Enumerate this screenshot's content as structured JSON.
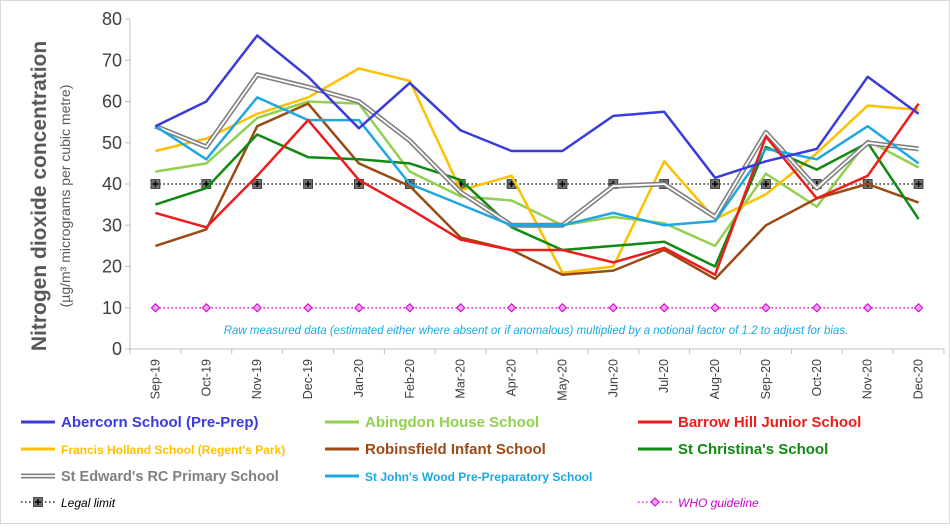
{
  "chart_data": {
    "type": "line",
    "title": "",
    "ylabel": "Nitrogen dioxide concentration",
    "ylabel_sub": "(µg/m³ micrograms per cubic metre)",
    "xlabel": "",
    "ylim": [
      0,
      80
    ],
    "yticks": [
      "0",
      "10",
      "20",
      "30",
      "40",
      "50",
      "60",
      "70",
      "80"
    ],
    "grid": false,
    "legend_position": "bottom",
    "annotation": "Raw measured data (estimated either where absent or if anomalous) multiplied by a notional factor of 1.2 to adjust for bias.",
    "categories": [
      "Sep-19",
      "Oct-19",
      "Nov-19",
      "Dec-19",
      "Jan-20",
      "Feb-20",
      "Mar-20",
      "Apr-20",
      "May-20",
      "Jun-20",
      "Jul-20",
      "Aug-20",
      "Sep-20",
      "Oct-20",
      "Nov-20",
      "Dec-20"
    ],
    "series": [
      {
        "name": "Abercorn School (Pre-Prep)",
        "color": "#3b3bdc",
        "style": "solid",
        "values": [
          54,
          60,
          76,
          66,
          53.5,
          64.5,
          53,
          48,
          48,
          56.5,
          57.5,
          41.5,
          45.5,
          48.5,
          66,
          57
        ]
      },
      {
        "name": "Abingdon House School",
        "color": "#92d050",
        "style": "solid",
        "values": [
          43,
          45,
          56,
          60,
          59.5,
          43,
          37,
          36,
          30,
          32,
          30.5,
          25,
          42.5,
          34.5,
          50.5,
          44
        ]
      },
      {
        "name": "Barrow Hill Junior School",
        "color": "#ee1c1c",
        "style": "solid",
        "values": [
          33,
          29.5,
          42,
          55.5,
          41,
          34,
          26.5,
          24,
          24,
          21,
          24.5,
          18,
          51.5,
          36.5,
          42,
          59.5
        ]
      },
      {
        "name": "Francis Holland School (Regent's Park)",
        "color": "#ffc000",
        "style": "solid",
        "values": [
          48,
          51,
          57,
          61,
          68,
          65,
          38.5,
          42,
          18.5,
          20,
          45.5,
          31.5,
          37.5,
          47.5,
          59,
          58
        ]
      },
      {
        "name": "Robinsfield Infant School",
        "color": "#9c4a14",
        "style": "solid",
        "values": [
          25,
          29,
          54,
          59.5,
          45,
          39.5,
          27,
          24,
          18,
          19,
          24,
          17,
          30,
          36.5,
          40,
          35.5
        ]
      },
      {
        "name": "St Christina's School",
        "color": "#118a11",
        "style": "solid",
        "values": [
          35,
          39,
          52,
          46.5,
          46,
          45,
          41,
          29.5,
          24,
          25,
          26,
          20,
          49,
          43.5,
          50,
          31.5
        ]
      },
      {
        "name": "St Edward's RC Primary School",
        "color": "#808080",
        "style": "double",
        "values": [
          54,
          49,
          66.5,
          63.5,
          60,
          50.5,
          38,
          30,
          30,
          39.5,
          40,
          32,
          52.5,
          39,
          50,
          48.5
        ]
      },
      {
        "name": "St John's Wood Pre-Preparatory School",
        "color": "#1ea7e1",
        "style": "solid",
        "values": [
          54,
          46,
          61,
          55.5,
          55.5,
          40,
          35,
          30,
          30,
          33,
          30,
          31,
          48.5,
          46,
          54,
          45
        ]
      },
      {
        "name": "Legal limit",
        "color": "#000000",
        "style": "dotted-marker",
        "marker": "square-plus",
        "values": [
          40,
          40,
          40,
          40,
          40,
          40,
          40,
          40,
          40,
          40,
          40,
          40,
          40,
          40,
          40,
          40
        ]
      },
      {
        "name": "WHO guideline",
        "color": "#cc00cc",
        "style": "dotted-marker",
        "marker": "diamond",
        "values": [
          10,
          10,
          10,
          10,
          10,
          10,
          10,
          10,
          10,
          10,
          10,
          10,
          10,
          10,
          10,
          10
        ]
      }
    ],
    "legend": [
      {
        "label": "Abercorn School (Pre-Prep)",
        "color": "#3b3bdc",
        "series": 0
      },
      {
        "label": "Abingdon House School",
        "color": "#92d050",
        "series": 1
      },
      {
        "label": "Barrow Hill Junior School",
        "color": "#ee1c1c",
        "series": 2
      },
      {
        "label": "Francis Holland School (Regent's Park)",
        "color": "#ffc000",
        "series": 3
      },
      {
        "label": "Robinsfield Infant School",
        "color": "#9c4a14",
        "series": 4
      },
      {
        "label": "St Christina's School",
        "color": "#118a11",
        "series": 5
      },
      {
        "label": "St Edward's RC Primary School",
        "color": "#808080",
        "series": 6
      },
      {
        "label": "St John's Wood Pre-Preparatory School",
        "color": "#1ea7e1",
        "series": 7
      },
      {
        "label": "Legal limit",
        "color": "#000000",
        "series": 8
      },
      {
        "label": "WHO guideline",
        "color": "#cc00cc",
        "series": 9
      }
    ]
  }
}
